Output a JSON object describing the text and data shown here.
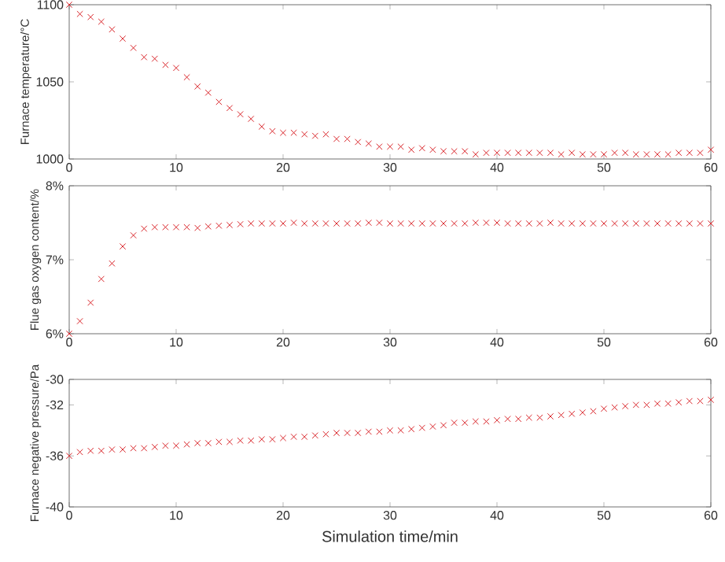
{
  "chart_data": [
    {
      "type": "scatter",
      "ylabel": "Furnace temperature/°C",
      "color": "#d9262b",
      "marker": "cross",
      "x": [
        0,
        1,
        2,
        3,
        4,
        5,
        6,
        7,
        8,
        9,
        10,
        11,
        12,
        13,
        14,
        15,
        16,
        17,
        18,
        19,
        20,
        21,
        22,
        23,
        24,
        25,
        26,
        27,
        28,
        29,
        30,
        31,
        32,
        33,
        34,
        35,
        36,
        37,
        38,
        39,
        40,
        41,
        42,
        43,
        44,
        45,
        46,
        47,
        48,
        49,
        50,
        51,
        52,
        53,
        54,
        55,
        56,
        57,
        58,
        59,
        60
      ],
      "values": [
        1100,
        1094,
        1092,
        1089,
        1084,
        1078,
        1072,
        1066,
        1065,
        1061,
        1059,
        1053,
        1047,
        1043,
        1037,
        1033,
        1029,
        1026,
        1021,
        1018,
        1017,
        1017,
        1016,
        1015,
        1016,
        1013,
        1013,
        1011,
        1010,
        1008,
        1008,
        1008,
        1006,
        1007,
        1006,
        1005,
        1005,
        1005,
        1003,
        1004,
        1004,
        1004,
        1004,
        1004,
        1004,
        1004,
        1003,
        1004,
        1003,
        1003,
        1003,
        1004,
        1004,
        1003,
        1003,
        1003,
        1003,
        1004,
        1004,
        1004,
        1006
      ],
      "xlim": [
        0,
        60
      ],
      "xticks": [
        0,
        10,
        20,
        30,
        40,
        50,
        60
      ],
      "ylim": [
        1000,
        1100
      ],
      "yticks": [
        1000,
        1050,
        1100
      ]
    },
    {
      "type": "scatter",
      "ylabel": "Flue gas oxygen content/%",
      "color": "#d9262b",
      "marker": "cross",
      "x": [
        0,
        1,
        2,
        3,
        4,
        5,
        6,
        7,
        8,
        9,
        10,
        11,
        12,
        13,
        14,
        15,
        16,
        17,
        18,
        19,
        20,
        21,
        22,
        23,
        24,
        25,
        26,
        27,
        28,
        29,
        30,
        31,
        32,
        33,
        34,
        35,
        36,
        37,
        38,
        39,
        40,
        41,
        42,
        43,
        44,
        45,
        46,
        47,
        48,
        49,
        50,
        51,
        52,
        53,
        54,
        55,
        56,
        57,
        58,
        59,
        60
      ],
      "values": [
        6.0,
        6.17,
        6.42,
        6.74,
        6.95,
        7.18,
        7.33,
        7.42,
        7.44,
        7.44,
        7.44,
        7.44,
        7.43,
        7.45,
        7.46,
        7.47,
        7.48,
        7.49,
        7.49,
        7.49,
        7.49,
        7.5,
        7.49,
        7.49,
        7.49,
        7.49,
        7.49,
        7.49,
        7.5,
        7.5,
        7.49,
        7.49,
        7.49,
        7.49,
        7.49,
        7.49,
        7.49,
        7.49,
        7.5,
        7.5,
        7.5,
        7.49,
        7.49,
        7.49,
        7.49,
        7.5,
        7.49,
        7.49,
        7.49,
        7.49,
        7.49,
        7.49,
        7.49,
        7.49,
        7.49,
        7.49,
        7.49,
        7.49,
        7.49,
        7.49,
        7.49
      ],
      "xlim": [
        0,
        60
      ],
      "xticks": [
        0,
        10,
        20,
        30,
        40,
        50,
        60
      ],
      "ylim": [
        6,
        8
      ],
      "yticks": [
        {
          "value": 6,
          "label": "6%"
        },
        {
          "value": 7,
          "label": "7%"
        },
        {
          "value": 8,
          "label": "8%"
        }
      ]
    },
    {
      "type": "scatter",
      "ylabel": "Furnace negative pressure/Pa",
      "xlabel": "Simulation time/min",
      "color": "#d9262b",
      "marker": "cross",
      "x": [
        0,
        1,
        2,
        3,
        4,
        5,
        6,
        7,
        8,
        9,
        10,
        11,
        12,
        13,
        14,
        15,
        16,
        17,
        18,
        19,
        20,
        21,
        22,
        23,
        24,
        25,
        26,
        27,
        28,
        29,
        30,
        31,
        32,
        33,
        34,
        35,
        36,
        37,
        38,
        39,
        40,
        41,
        42,
        43,
        44,
        45,
        46,
        47,
        48,
        49,
        50,
        51,
        52,
        53,
        54,
        55,
        56,
        57,
        58,
        59,
        60
      ],
      "values": [
        -36,
        -35.7,
        -35.6,
        -35.6,
        -35.5,
        -35.5,
        -35.4,
        -35.4,
        -35.3,
        -35.2,
        -35.2,
        -35.1,
        -35.0,
        -35.0,
        -34.9,
        -34.9,
        -34.8,
        -34.8,
        -34.7,
        -34.7,
        -34.6,
        -34.5,
        -34.5,
        -34.4,
        -34.3,
        -34.2,
        -34.2,
        -34.2,
        -34.1,
        -34.1,
        -34.0,
        -34.0,
        -33.9,
        -33.8,
        -33.7,
        -33.6,
        -33.4,
        -33.4,
        -33.3,
        -33.3,
        -33.2,
        -33.1,
        -33.1,
        -33.0,
        -33.0,
        -32.9,
        -32.8,
        -32.7,
        -32.6,
        -32.5,
        -32.3,
        -32.2,
        -32.1,
        -32.0,
        -32.0,
        -31.9,
        -31.9,
        -31.8,
        -31.7,
        -31.7,
        -31.6
      ],
      "xlim": [
        0,
        60
      ],
      "xticks": [
        0,
        10,
        20,
        30,
        40,
        50,
        60
      ],
      "ylim": [
        -40,
        -30
      ],
      "yticks": [
        -40,
        -36,
        -32,
        -30
      ]
    }
  ]
}
